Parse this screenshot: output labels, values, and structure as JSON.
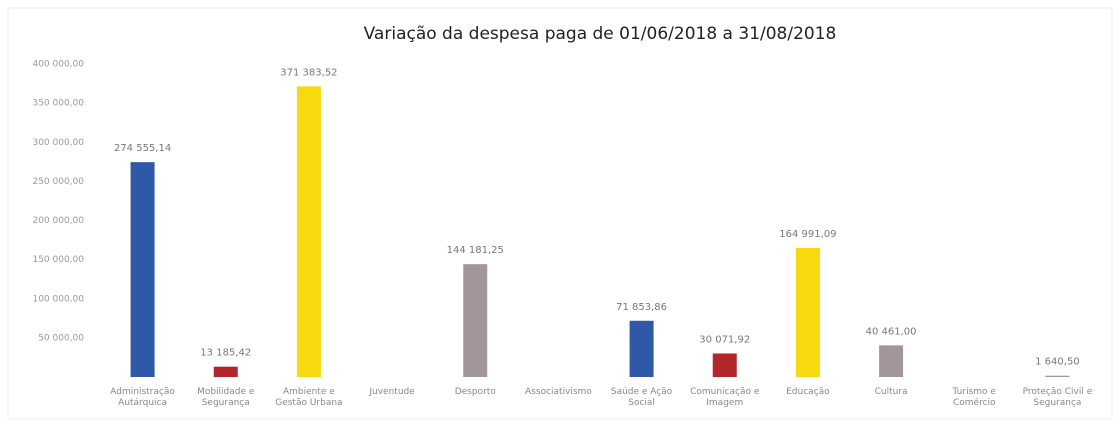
{
  "chart_data": {
    "type": "bar",
    "title": "Variação da despesa paga de 01/06/2018 a 31/08/2018",
    "categories": [
      "Administração Autárquica",
      "Mobilidade e Segurança",
      "Ambiente e Gestão Urbana",
      "Juventude",
      "Desporto",
      "Associativismo",
      "Saúde e Ação Social",
      "Comunicação e Imagem",
      "Educação",
      "Cultura",
      "Turismo e Comércio",
      "Proteção Civil e Segurança"
    ],
    "values": [
      274555.14,
      13185.42,
      371383.52,
      null,
      144181.25,
      null,
      71853.86,
      30071.92,
      164991.09,
      40461.0,
      null,
      1640.5
    ],
    "value_labels": [
      "274 555,14",
      "13 185,42",
      "371 383,52",
      null,
      "144 181,25",
      null,
      "71 853,86",
      "30 071,92",
      "164 991,09",
      "40 461,00",
      null,
      "1 640,50"
    ],
    "colors": [
      "#2f59a6",
      "#b3262a",
      "#f6d90f",
      null,
      "#a39699",
      null,
      "#2f59a6",
      "#b3262a",
      "#f6d90f",
      "#a39699",
      null,
      "#a39699"
    ],
    "ylim": [
      0,
      400000
    ],
    "yticks": [
      {
        "value": 50000,
        "label": "50 000,00"
      },
      {
        "value": 100000,
        "label": "100 000,00"
      },
      {
        "value": 150000,
        "label": "150 000,00"
      },
      {
        "value": 200000,
        "label": "200 000,00"
      },
      {
        "value": 250000,
        "label": "250 000,00"
      },
      {
        "value": 300000,
        "label": "300 000,00"
      },
      {
        "value": 350000,
        "label": "350 000,00"
      },
      {
        "value": 400000,
        "label": "400 000,00"
      }
    ],
    "grid": false
  }
}
